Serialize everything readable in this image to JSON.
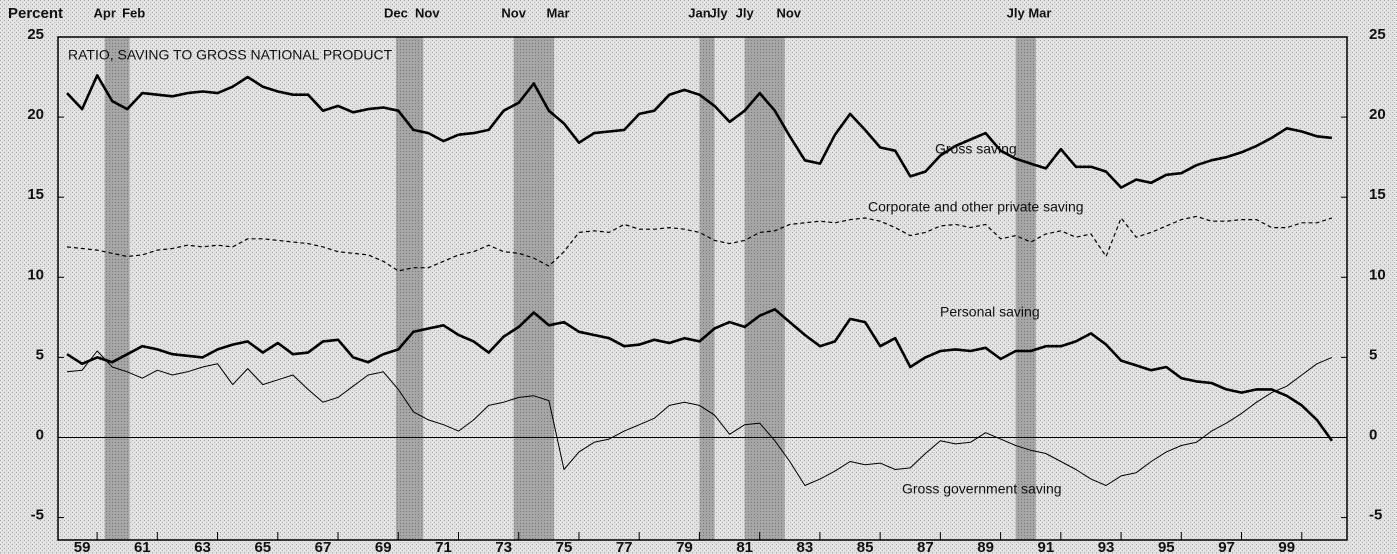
{
  "chart_data": {
    "type": "line",
    "title": "RATIO, SAVING TO GROSS NATIONAL PRODUCT",
    "y_label": "Percent",
    "xlim": [
      1958.7,
      2001.5
    ],
    "ylim": [
      -6.4,
      25
    ],
    "yticks": [
      -5,
      0,
      5,
      10,
      15,
      20,
      25
    ],
    "baseline": 0,
    "xticks": [
      {
        "value": 1959.5,
        "label": "59"
      },
      {
        "value": 1961.5,
        "label": "61"
      },
      {
        "value": 1963.5,
        "label": "63"
      },
      {
        "value": 1965.5,
        "label": "65"
      },
      {
        "value": 1967.5,
        "label": "67"
      },
      {
        "value": 1969.5,
        "label": "69"
      },
      {
        "value": 1971.5,
        "label": "71"
      },
      {
        "value": 1973.5,
        "label": "73"
      },
      {
        "value": 1975.5,
        "label": "75"
      },
      {
        "value": 1977.5,
        "label": "77"
      },
      {
        "value": 1979.5,
        "label": "79"
      },
      {
        "value": 1981.5,
        "label": "81"
      },
      {
        "value": 1983.5,
        "label": "83"
      },
      {
        "value": 1985.5,
        "label": "85"
      },
      {
        "value": 1987.5,
        "label": "87"
      },
      {
        "value": 1989.5,
        "label": "89"
      },
      {
        "value": 1991.5,
        "label": "91"
      },
      {
        "value": 1993.5,
        "label": "93"
      },
      {
        "value": 1995.5,
        "label": "95"
      },
      {
        "value": 1997.5,
        "label": "97"
      },
      {
        "value": 1999.5,
        "label": "99"
      }
    ],
    "recessions": [
      {
        "start": 1960.25,
        "end": 1961.08,
        "start_label": "Apr",
        "end_label": "Feb"
      },
      {
        "start": 1969.92,
        "end": 1970.83,
        "start_label": "Dec",
        "end_label": "Nov"
      },
      {
        "start": 1973.83,
        "end": 1975.17,
        "start_label": "Nov",
        "end_label": "Mar"
      },
      {
        "start": 1980.0,
        "end": 1980.5,
        "start_label": "Jan",
        "end_label": "Jly"
      },
      {
        "start": 1981.5,
        "end": 1982.83,
        "start_label": "Jly",
        "end_label": "Nov"
      },
      {
        "start": 1990.5,
        "end": 1991.17,
        "start_label": "Jly",
        "end_label": "Mar"
      }
    ],
    "x": [
      1959,
      1959.5,
      1960,
      1960.5,
      1961,
      1961.5,
      1962,
      1962.5,
      1963,
      1963.5,
      1964,
      1964.5,
      1965,
      1965.5,
      1966,
      1966.5,
      1967,
      1967.5,
      1968,
      1968.5,
      1969,
      1969.5,
      1970,
      1970.5,
      1971,
      1971.5,
      1972,
      1972.5,
      1973,
      1973.5,
      1974,
      1974.5,
      1975,
      1975.5,
      1976,
      1976.5,
      1977,
      1977.5,
      1978,
      1978.5,
      1979,
      1979.5,
      1980,
      1980.5,
      1981,
      1981.5,
      1982,
      1982.5,
      1983,
      1983.5,
      1984,
      1984.5,
      1985,
      1985.5,
      1986,
      1986.5,
      1987,
      1987.5,
      1988,
      1988.5,
      1989,
      1989.5,
      1990,
      1990.5,
      1991,
      1991.5,
      1992,
      1992.5,
      1993,
      1993.5,
      1994,
      1994.5,
      1995,
      1995.5,
      1996,
      1996.5,
      1997,
      1997.5,
      1998,
      1998.5,
      1999,
      1999.5,
      2000,
      2000.5,
      2001
    ],
    "series": [
      {
        "name": "Gross saving",
        "color": "#000000",
        "style": "thick",
        "values": [
          21.5,
          20.5,
          22.6,
          21.0,
          20.5,
          21.5,
          21.4,
          21.3,
          21.5,
          21.6,
          21.5,
          21.9,
          22.5,
          21.9,
          21.6,
          21.4,
          21.4,
          20.4,
          20.7,
          20.3,
          20.5,
          20.6,
          20.4,
          19.2,
          19.0,
          18.5,
          18.9,
          19.0,
          19.2,
          20.4,
          20.9,
          22.1,
          20.4,
          19.6,
          18.4,
          19.0,
          19.1,
          19.2,
          20.2,
          20.4,
          21.4,
          21.7,
          21.4,
          20.7,
          19.7,
          20.4,
          21.5,
          20.4,
          18.8,
          17.3,
          17.1,
          18.9,
          20.2,
          19.2,
          18.1,
          17.9,
          16.3,
          16.6,
          17.6,
          18.2,
          18.6,
          19.0,
          17.9,
          17.4,
          17.1,
          16.8,
          18.0,
          16.9,
          16.9,
          16.6,
          15.6,
          16.1,
          15.9,
          16.4,
          16.5,
          17.0,
          17.3,
          17.5,
          17.8,
          18.2,
          18.7,
          19.3,
          19.1,
          18.8,
          18.7
        ]
      },
      {
        "name": "Corporate and other private saving",
        "color": "#000000",
        "style": "dashed",
        "values": [
          11.9,
          11.8,
          11.7,
          11.5,
          11.3,
          11.4,
          11.7,
          11.8,
          12.0,
          11.9,
          12.0,
          11.9,
          12.4,
          12.4,
          12.3,
          12.2,
          12.1,
          11.9,
          11.6,
          11.5,
          11.4,
          11.0,
          10.4,
          10.6,
          10.6,
          11.0,
          11.4,
          11.6,
          12.0,
          11.6,
          11.5,
          11.2,
          10.7,
          11.6,
          12.8,
          12.9,
          12.8,
          13.3,
          13.0,
          13.0,
          13.1,
          13.0,
          12.8,
          12.3,
          12.1,
          12.3,
          12.8,
          12.9,
          13.3,
          13.4,
          13.5,
          13.4,
          13.6,
          13.7,
          13.5,
          13.1,
          12.6,
          12.8,
          13.2,
          13.3,
          13.1,
          13.3,
          12.4,
          12.6,
          12.2,
          12.7,
          12.9,
          12.5,
          12.7,
          11.3,
          13.7,
          12.5,
          12.8,
          13.2,
          13.6,
          13.8,
          13.5,
          13.5,
          13.6,
          13.6,
          13.1,
          13.1,
          13.4,
          13.4,
          13.7
        ]
      },
      {
        "name": "Personal saving",
        "color": "#000000",
        "style": "thick",
        "values": [
          5.2,
          4.6,
          5.0,
          4.7,
          5.2,
          5.7,
          5.5,
          5.2,
          5.1,
          5.0,
          5.5,
          5.8,
          6.0,
          5.3,
          5.9,
          5.2,
          5.3,
          6.0,
          6.1,
          5.0,
          4.7,
          5.2,
          5.5,
          6.6,
          6.8,
          7.0,
          6.4,
          6.0,
          5.3,
          6.3,
          6.9,
          7.8,
          7.0,
          7.2,
          6.6,
          6.4,
          6.2,
          5.7,
          5.8,
          6.1,
          5.9,
          6.2,
          6.0,
          6.8,
          7.2,
          6.9,
          7.6,
          8.0,
          7.2,
          6.4,
          5.7,
          6.0,
          7.4,
          7.2,
          5.7,
          6.2,
          4.4,
          5.0,
          5.4,
          5.5,
          5.4,
          5.6,
          4.9,
          5.4,
          5.4,
          5.7,
          5.7,
          6.0,
          6.5,
          5.8,
          4.8,
          4.5,
          4.2,
          4.4,
          3.7,
          3.5,
          3.4,
          3.0,
          2.8,
          3.0,
          3.0,
          2.6,
          2.0,
          1.1,
          -0.2
        ]
      },
      {
        "name": "Gross government saving",
        "color": "#000000",
        "style": "thin",
        "values": [
          4.1,
          4.2,
          5.4,
          4.4,
          4.1,
          3.7,
          4.2,
          3.9,
          4.1,
          4.4,
          4.6,
          3.3,
          4.3,
          3.3,
          3.6,
          3.9,
          3.0,
          2.2,
          2.5,
          3.2,
          3.9,
          4.1,
          3.0,
          1.6,
          1.1,
          0.8,
          0.4,
          1.1,
          2.0,
          2.2,
          2.5,
          2.6,
          2.3,
          -2.0,
          -0.9,
          -0.3,
          -0.1,
          0.4,
          0.8,
          1.2,
          2.0,
          2.2,
          2.0,
          1.4,
          0.2,
          0.8,
          0.9,
          -0.2,
          -1.5,
          -3.0,
          -2.6,
          -2.1,
          -1.5,
          -1.7,
          -1.6,
          -2.0,
          -1.9,
          -1.0,
          -0.2,
          -0.4,
          -0.3,
          0.3,
          -0.1,
          -0.5,
          -0.8,
          -1.0,
          -1.5,
          -2.0,
          -2.6,
          -3.0,
          -2.4,
          -2.2,
          -1.5,
          -0.9,
          -0.5,
          -0.3,
          0.4,
          0.9,
          1.5,
          2.2,
          2.8,
          3.2,
          3.9,
          4.6,
          5.0
        ]
      }
    ]
  }
}
